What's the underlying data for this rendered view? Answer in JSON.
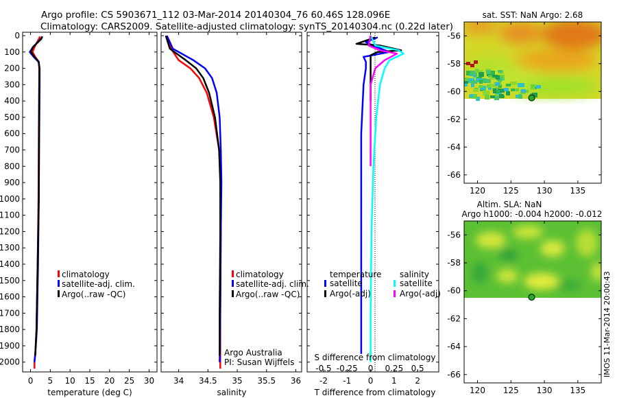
{
  "header": {
    "line1": "Argo profile: CS 5903671_112 03-Mar-2014 20140304_76 60.46S 128.096E",
    "line2": "Climatology: CARS2009. Satellite-adjusted climatology: synTS_20140304.nc (0.22d later)"
  },
  "colors": {
    "climatology": "#ff0000",
    "satellite": "#0000ff",
    "argo": "#000000",
    "sat_salinity": "#00ffff",
    "argo_salinity": "#ff00ff"
  },
  "depth_ticks": [
    "0",
    "100",
    "200",
    "300",
    "400",
    "500",
    "600",
    "700",
    "800",
    "900",
    "1000",
    "1100",
    "1200",
    "1300",
    "1400",
    "1500",
    "1600",
    "1700",
    "1800",
    "1900",
    "2000"
  ],
  "chart_data": [
    {
      "type": "line",
      "id": "temperature",
      "xlabel": "temperature (deg C)",
      "xlim": [
        -2,
        32
      ],
      "ylim": [
        2060,
        0
      ],
      "xticks": [
        "0",
        "5",
        "10",
        "15",
        "20",
        "25",
        "30"
      ],
      "legend": [
        "climatology",
        "satellite-adj. clim.",
        "Argo(..raw -QC)"
      ],
      "series": [
        {
          "name": "climatology",
          "color": "#ff0000",
          "x": [
            2.4,
            2.1,
            1.0,
            0.5,
            1.2,
            2.1,
            2.2,
            2.2,
            2.1,
            2.0,
            1.8,
            1.5,
            1.2,
            1.0,
            1.0
          ],
          "y": [
            5,
            20,
            70,
            100,
            130,
            160,
            200,
            300,
            600,
            1000,
            1400,
            1800,
            1960,
            1990,
            2040
          ]
        },
        {
          "name": "satellite-adj. clim.",
          "color": "#0000ff",
          "x": [
            3.0,
            2.6,
            0.6,
            -0.2,
            0.8,
            2.0,
            2.3,
            2.3,
            2.2,
            2.1,
            1.9,
            1.6,
            1.2,
            1.0
          ],
          "y": [
            5,
            20,
            70,
            100,
            130,
            160,
            200,
            300,
            600,
            1000,
            1400,
            1800,
            1950,
            2000
          ]
        },
        {
          "name": "Argo(..raw -QC)",
          "color": "#000000",
          "x": [
            3.0,
            2.7,
            0.6,
            0.1,
            1.0,
            2.1,
            2.25,
            2.2,
            2.15,
            2.1,
            1.8,
            1.5,
            1.2
          ],
          "y": [
            5,
            20,
            70,
            100,
            130,
            160,
            200,
            300,
            600,
            1000,
            1400,
            1800,
            1960
          ]
        }
      ]
    },
    {
      "type": "line",
      "id": "salinity",
      "xlabel": "salinity",
      "xlim": [
        33.7,
        36.1
      ],
      "ylim": [
        2060,
        0
      ],
      "xticks": [
        "34",
        "34.5",
        "35",
        "35.5",
        "36"
      ],
      "legend": [
        "climatology",
        "satellite-adj. clim.",
        "Argo(..raw -QC)"
      ],
      "annotation": [
        "Argo Australia",
        "PI: Susan Wijffels"
      ],
      "series": [
        {
          "name": "climatology",
          "color": "#ff0000",
          "x": [
            33.8,
            33.87,
            34.0,
            34.2,
            34.35,
            34.48,
            34.6,
            34.69,
            34.72,
            34.72,
            34.71,
            34.71
          ],
          "y": [
            0,
            80,
            150,
            200,
            260,
            350,
            500,
            700,
            900,
            1200,
            1700,
            2040
          ]
        },
        {
          "name": "satellite-adj. clim.",
          "color": "#0000ff",
          "x": [
            33.8,
            33.9,
            34.25,
            34.45,
            34.57,
            34.65,
            34.7,
            34.72,
            34.73,
            34.72,
            34.71,
            34.7
          ],
          "y": [
            0,
            80,
            150,
            200,
            260,
            350,
            500,
            700,
            900,
            1200,
            1700,
            2000
          ]
        },
        {
          "name": "Argo(..raw -QC)",
          "color": "#000000",
          "x": [
            33.78,
            33.85,
            34.12,
            34.3,
            34.42,
            34.52,
            34.62,
            34.69,
            34.71,
            34.71,
            34.7,
            34.7
          ],
          "y": [
            0,
            80,
            150,
            200,
            260,
            350,
            500,
            700,
            900,
            1200,
            1700,
            1960
          ]
        }
      ]
    },
    {
      "type": "line",
      "id": "difference",
      "xlabel": "T difference from climatology",
      "xlabel_top": "S difference from climatology",
      "xlim": [
        -2.7,
        2.9
      ],
      "xlim_top": [
        -0.675,
        0.725
      ],
      "ylim": [
        2060,
        0
      ],
      "xticks": [
        "-2",
        "-1",
        "0",
        "1",
        "2"
      ],
      "xticks_top": [
        "-0.5",
        "-0.25",
        "0",
        "0.25",
        "0.5"
      ],
      "legend_titles": [
        "temperature",
        "salinity"
      ],
      "legend": [
        "satellite",
        "Argo(-adj)",
        "satellite",
        "Argo(-adj)"
      ],
      "series": [
        {
          "name": "temperature satellite",
          "color": "#0000ff",
          "x": [
            0.3,
            -0.2,
            0.1,
            0.8,
            -0.3,
            -0.2,
            -0.2,
            -0.3,
            -0.4,
            -0.4,
            -0.4,
            -0.4,
            -0.4
          ],
          "y": [
            10,
            40,
            60,
            100,
            130,
            160,
            200,
            300,
            600,
            1000,
            1400,
            1800,
            1950
          ]
        },
        {
          "name": "temperature Argo(-adj)",
          "color": "#000000",
          "x": [
            0.2,
            -0.6,
            0.4,
            1.3,
            0.3,
            0.0,
            0.0,
            0.0,
            0.0,
            0.0
          ],
          "y": [
            10,
            50,
            60,
            90,
            100,
            120,
            160,
            200,
            300,
            400
          ]
        },
        {
          "name": "salinity satellite",
          "color": "#00ffff",
          "x": [
            0.0,
            0.05,
            0.3,
            0.35,
            0.2,
            0.15,
            0.1,
            0.06,
            0.03,
            0.01,
            0.0,
            0.0
          ],
          "y": [
            0,
            60,
            90,
            110,
            150,
            200,
            300,
            500,
            800,
            1200,
            1700,
            2000
          ]
        },
        {
          "name": "salinity Argo(-adj)",
          "color": "#ff00ff",
          "x": [
            0.0,
            -0.02,
            0.1,
            0.28,
            0.15,
            0.05,
            0.0,
            0.0,
            0.0
          ],
          "y": [
            0,
            60,
            90,
            110,
            150,
            200,
            300,
            500,
            800
          ]
        }
      ]
    },
    {
      "type": "heatmap",
      "id": "sst_map",
      "title": "sat. SST: NaN Argo: 2.68",
      "xlim": [
        118,
        138.5
      ],
      "ylim": [
        -66.6,
        -55
      ],
      "xticks": [
        "120",
        "125",
        "130",
        "135"
      ],
      "yticks": [
        "-56",
        "-58",
        "-60",
        "-62",
        "-64",
        "-66"
      ],
      "marker": {
        "lon": 128.096,
        "lat": -60.46,
        "color": "#22aa22"
      }
    },
    {
      "type": "heatmap",
      "id": "sla_map",
      "title": "Altim. SLA: NaN",
      "subtitle": "Argo h1000: -0.004 h2000: -0.012",
      "xlim": [
        118,
        138.5
      ],
      "ylim": [
        -66.6,
        -55
      ],
      "xticks": [
        "120",
        "125",
        "130",
        "135"
      ],
      "yticks": [
        "-56",
        "-58",
        "-60",
        "-62",
        "-64",
        "-66"
      ],
      "marker": {
        "lon": 128.096,
        "lat": -60.46,
        "color": "#22aa22"
      }
    }
  ],
  "stamp": "IMOS 11-Mar-2014 20:00:43"
}
